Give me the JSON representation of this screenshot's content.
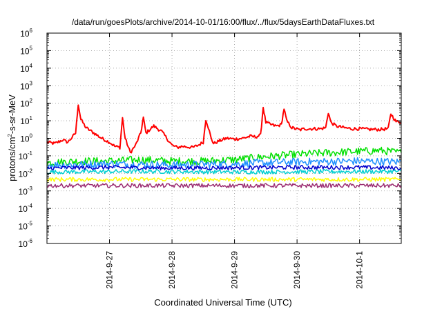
{
  "chart_data": {
    "type": "line",
    "title": "/data/run/goesPlots/archive/2014-10-01/16:00/flux/../flux/5daysEarthDataFluxes.txt",
    "xlabel": "Coordinated Universal Time (UTC)",
    "ylabel_parts": [
      "protons/cm",
      "2",
      "-s-sr-MeV"
    ],
    "y_scale": "log",
    "ylim": [
      1e-06,
      1000000.0
    ],
    "y_ticks": [
      {
        "base": "10",
        "exp": "-6",
        "value": -6
      },
      {
        "base": "10",
        "exp": "-5",
        "value": -5
      },
      {
        "base": "10",
        "exp": "-4",
        "value": -4
      },
      {
        "base": "10",
        "exp": "-3",
        "value": -3
      },
      {
        "base": "10",
        "exp": "-2",
        "value": -2
      },
      {
        "base": "10",
        "exp": "-1",
        "value": -1
      },
      {
        "base": "10",
        "exp": "0",
        "value": 0
      },
      {
        "base": "10",
        "exp": "1",
        "value": 1
      },
      {
        "base": "10",
        "exp": "2",
        "value": 2
      },
      {
        "base": "10",
        "exp": "3",
        "value": 3
      },
      {
        "base": "10",
        "exp": "4",
        "value": 4
      },
      {
        "base": "10",
        "exp": "5",
        "value": 5
      },
      {
        "base": "10",
        "exp": "6",
        "value": 6
      }
    ],
    "x_time_range": [
      "2014-09-26T00:00",
      "2014-10-01T16:00"
    ],
    "x_ticks": [
      {
        "label": "2014-9-27",
        "time": "2014-09-27T00:00"
      },
      {
        "label": "2014-9-28",
        "time": "2014-09-28T00:00"
      },
      {
        "label": "2014-9-29",
        "time": "2014-09-29T00:00"
      },
      {
        "label": "2014-9-30",
        "time": "2014-09-30T00:00"
      },
      {
        "label": "2014-10-1",
        "time": "2014-10-01T00:00"
      }
    ],
    "grid": true,
    "legend": "none",
    "series": [
      {
        "color": "#ff0000",
        "width": 2,
        "points": [
          [
            "2014-09-26T00:00",
            0.6
          ],
          [
            "2014-09-26T03:00",
            0.5
          ],
          [
            "2014-09-26T06:00",
            0.8
          ],
          [
            "2014-09-26T08:00",
            0.6
          ],
          [
            "2014-09-26T10:00",
            1.3
          ],
          [
            "2014-09-26T11:00",
            2.0
          ],
          [
            "2014-09-26T12:00",
            90
          ],
          [
            "2014-09-26T13:00",
            12
          ],
          [
            "2014-09-26T15:00",
            4
          ],
          [
            "2014-09-26T18:00",
            2
          ],
          [
            "2014-09-26T21:00",
            1
          ],
          [
            "2014-09-27T00:00",
            0.6
          ],
          [
            "2014-09-27T02:00",
            0.35
          ],
          [
            "2014-09-27T04:00",
            0.3
          ],
          [
            "2014-09-27T05:00",
            15
          ],
          [
            "2014-09-27T06:00",
            1.0
          ],
          [
            "2014-09-27T08:00",
            0.15
          ],
          [
            "2014-09-27T10:00",
            0.4
          ],
          [
            "2014-09-27T12:00",
            2
          ],
          [
            "2014-09-27T13:00",
            15
          ],
          [
            "2014-09-27T14:00",
            2
          ],
          [
            "2014-09-27T17:00",
            5
          ],
          [
            "2014-09-27T20:00",
            2.5
          ],
          [
            "2014-09-27T22:00",
            1.0
          ],
          [
            "2014-09-28T00:00",
            0.4
          ],
          [
            "2014-09-28T02:00",
            0.3
          ],
          [
            "2014-09-28T04:00",
            0.35
          ],
          [
            "2014-09-28T08:00",
            0.3
          ],
          [
            "2014-09-28T10:00",
            0.4
          ],
          [
            "2014-09-28T12:00",
            0.6
          ],
          [
            "2014-09-28T13:00",
            12
          ],
          [
            "2014-09-28T14:00",
            4
          ],
          [
            "2014-09-28T15:00",
            1.0
          ],
          [
            "2014-09-28T16:00",
            0.5
          ],
          [
            "2014-09-28T18:00",
            0.7
          ],
          [
            "2014-09-28T21:00",
            1.0
          ],
          [
            "2014-09-29T00:00",
            0.9
          ],
          [
            "2014-09-29T03:00",
            1.0
          ],
          [
            "2014-09-29T06:00",
            1.3
          ],
          [
            "2014-09-29T08:00",
            1.2
          ],
          [
            "2014-09-29T10:00",
            1.5
          ],
          [
            "2014-09-29T11:00",
            60
          ],
          [
            "2014-09-29T12:00",
            8
          ],
          [
            "2014-09-29T14:00",
            6
          ],
          [
            "2014-09-29T16:00",
            5
          ],
          [
            "2014-09-29T18:00",
            6
          ],
          [
            "2014-09-29T19:00",
            50
          ],
          [
            "2014-09-29T20:00",
            10
          ],
          [
            "2014-09-29T22:00",
            4
          ],
          [
            "2014-09-30T01:00",
            3
          ],
          [
            "2014-09-30T03:00",
            3.5
          ],
          [
            "2014-09-30T06:00",
            3.5
          ],
          [
            "2014-09-30T09:00",
            3.5
          ],
          [
            "2014-09-30T11:00",
            4
          ],
          [
            "2014-09-30T12:00",
            30
          ],
          [
            "2014-09-30T13:00",
            8
          ],
          [
            "2014-09-30T15:00",
            5
          ],
          [
            "2014-09-30T18:00",
            4
          ],
          [
            "2014-09-30T21:00",
            3.5
          ],
          [
            "2014-10-01T00:00",
            3.5
          ],
          [
            "2014-10-01T04:00",
            3.2
          ],
          [
            "2014-10-01T08:00",
            3.2
          ],
          [
            "2014-10-01T11:00",
            3.5
          ],
          [
            "2014-10-01T12:00",
            25
          ],
          [
            "2014-10-01T13:00",
            15
          ],
          [
            "2014-10-01T14:00",
            9
          ],
          [
            "2014-10-01T16:00",
            8
          ]
        ]
      },
      {
        "color": "#00e000",
        "width": 1.5,
        "points": [
          [
            "2014-09-26T00:00",
            0.04
          ],
          [
            "2014-09-26T12:00",
            0.05
          ],
          [
            "2014-09-27T00:00",
            0.05
          ],
          [
            "2014-09-27T12:00",
            0.06
          ],
          [
            "2014-09-28T00:00",
            0.05
          ],
          [
            "2014-09-28T12:00",
            0.05
          ],
          [
            "2014-09-29T00:00",
            0.06
          ],
          [
            "2014-09-29T12:00",
            0.09
          ],
          [
            "2014-09-30T00:00",
            0.12
          ],
          [
            "2014-09-30T12:00",
            0.15
          ],
          [
            "2014-10-01T00:00",
            0.18
          ],
          [
            "2014-10-01T08:00",
            0.2
          ],
          [
            "2014-10-01T16:00",
            0.15
          ]
        ]
      },
      {
        "color": "#1e90ff",
        "width": 1.5,
        "points": [
          [
            "2014-09-26T00:00",
            0.03
          ],
          [
            "2014-09-27T00:00",
            0.035
          ],
          [
            "2014-09-28T00:00",
            0.03
          ],
          [
            "2014-09-29T00:00",
            0.035
          ],
          [
            "2014-09-30T00:00",
            0.045
          ],
          [
            "2014-10-01T00:00",
            0.05
          ],
          [
            "2014-10-01T16:00",
            0.045
          ]
        ]
      },
      {
        "color": "#00ced1",
        "width": 1.5,
        "points": [
          [
            "2014-09-26T00:00",
            0.012
          ],
          [
            "2014-09-27T12:00",
            0.013
          ],
          [
            "2014-09-29T00:00",
            0.012
          ],
          [
            "2014-10-01T16:00",
            0.013
          ]
        ]
      },
      {
        "color": "#0000cd",
        "width": 1.5,
        "points": [
          [
            "2014-09-26T00:00",
            0.02
          ],
          [
            "2014-09-27T00:00",
            0.022
          ],
          [
            "2014-09-28T00:00",
            0.02
          ],
          [
            "2014-09-29T00:00",
            0.021
          ],
          [
            "2014-09-30T00:00",
            0.022
          ],
          [
            "2014-10-01T00:00",
            0.022
          ],
          [
            "2014-10-01T16:00",
            0.02
          ]
        ]
      },
      {
        "color": "#ffff00",
        "width": 1.5,
        "points": [
          [
            "2014-09-26T00:00",
            0.0045
          ],
          [
            "2014-09-28T00:00",
            0.0045
          ],
          [
            "2014-09-30T00:00",
            0.0045
          ],
          [
            "2014-10-01T16:00",
            0.0045
          ]
        ]
      },
      {
        "color": "#9b2d72",
        "width": 1.5,
        "points": [
          [
            "2014-09-26T00:00",
            0.002
          ],
          [
            "2014-09-28T00:00",
            0.002
          ],
          [
            "2014-09-30T00:00",
            0.002
          ],
          [
            "2014-10-01T16:00",
            0.002
          ]
        ]
      }
    ]
  }
}
